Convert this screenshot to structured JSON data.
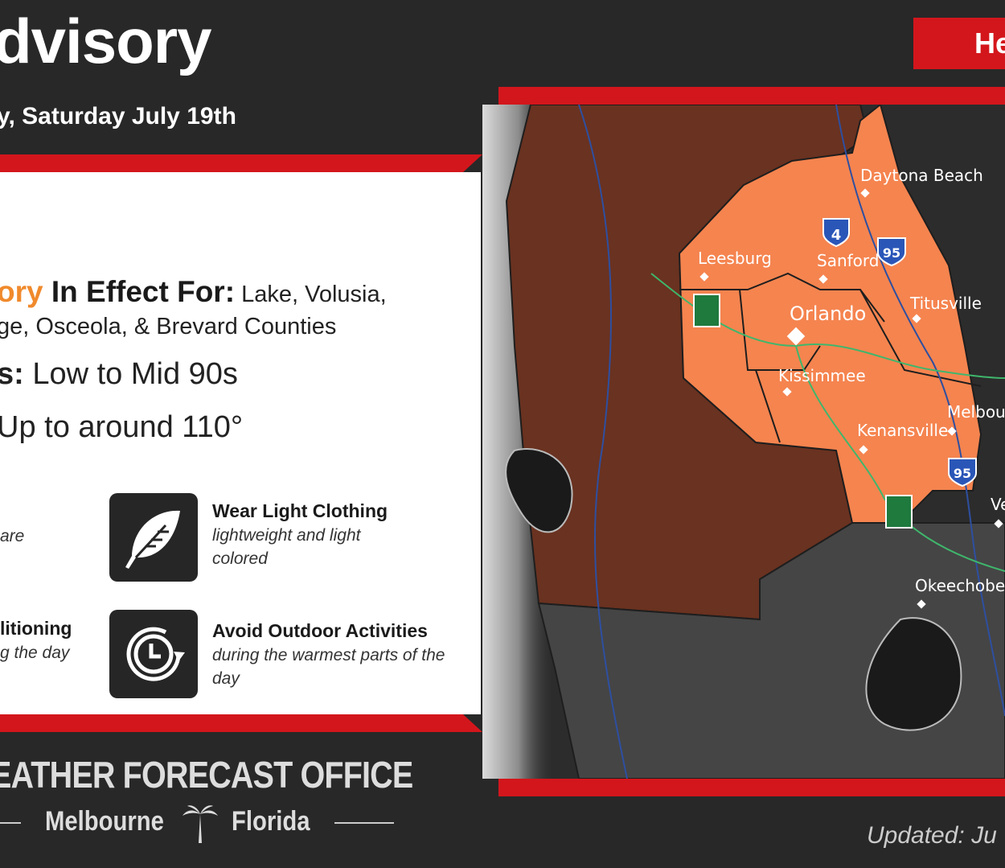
{
  "header": {
    "title": "dvisory",
    "subtitle": "y, Saturday July 19th",
    "badge": "He"
  },
  "advisory": {
    "orange_word": "ory",
    "in_effect_label": " In Effect For:",
    "counties_line1": " Lake, Volusia,",
    "counties_line2": "ge, Osceola, & Brevard Counties",
    "highs_label": "s:",
    "highs_value": " Low to Mid 90s",
    "heat_index": " Up to around 110°"
  },
  "tips": [
    {
      "title": "",
      "desc": "are"
    },
    {
      "title": "Wear Light Clothing",
      "desc": "lightweight and light colored",
      "icon": "feather-icon"
    },
    {
      "title": "litioning",
      "desc": "g the day"
    },
    {
      "title": "Avoid Outdoor Activities",
      "desc": "during the warmest parts of the day",
      "icon": "clock-icon"
    }
  ],
  "footer": {
    "office": "EATHER FORECAST OFFICE",
    "city": "Melbourne",
    "state": "Florida",
    "updated": "Updated: Ju"
  },
  "map": {
    "cities": [
      "Daytona Beach",
      "Leesburg",
      "Sanford",
      "Orlando",
      "Titusville",
      "Kissimmee",
      "Melbour",
      "Kenansville",
      "Ve",
      "Okeechobee"
    ],
    "shields": [
      "4",
      "95",
      "95"
    ],
    "colors": {
      "advisory": "#f5844f",
      "neighbor": "#6a3220",
      "outside": "#4a4a4a",
      "water": "#202020"
    }
  }
}
